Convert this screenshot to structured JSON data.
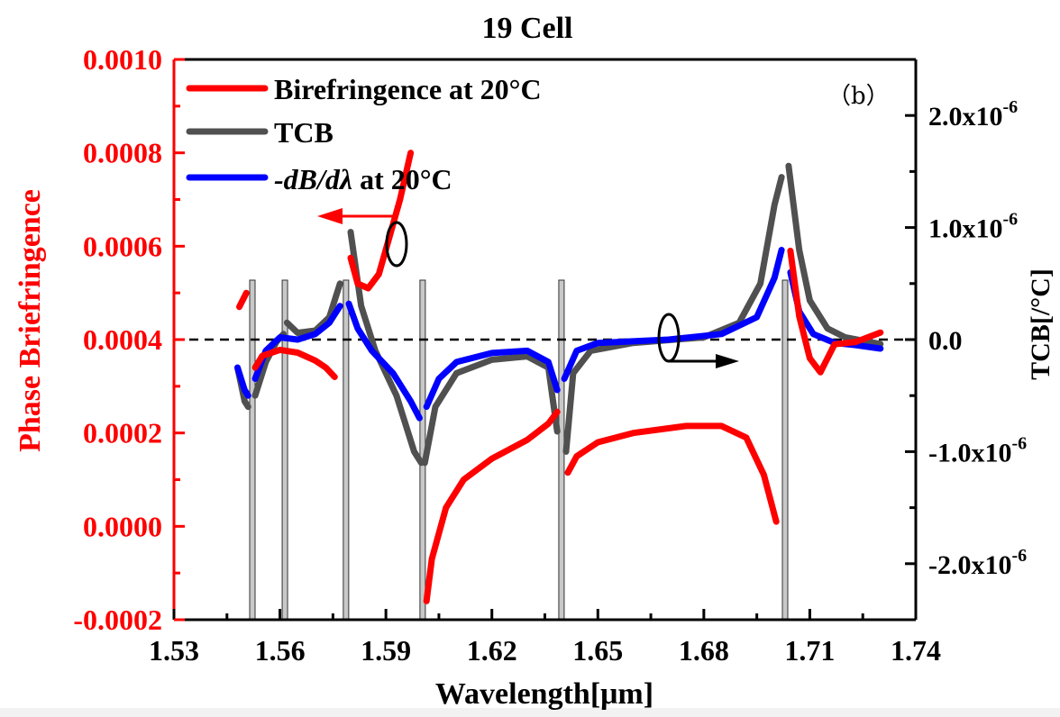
{
  "chart_data": {
    "type": "line",
    "title": "19 Cell",
    "panel_label": "（b）",
    "xlabel": "Wavelength[μm]",
    "ylabel_left": "Phase Briefringence",
    "ylabel_right": "TCB[/°C]",
    "xlim": [
      1.53,
      1.74
    ],
    "ylim_left": [
      -0.0002,
      0.001
    ],
    "ylim_right": [
      -2.5e-06,
      2.5e-06
    ],
    "x_ticks": [
      "1.53",
      "1.56",
      "1.59",
      "1.62",
      "1.65",
      "1.68",
      "1.71",
      "1.74"
    ],
    "x_tick_values": [
      1.53,
      1.56,
      1.59,
      1.62,
      1.65,
      1.68,
      1.71,
      1.74
    ],
    "y_left_ticks": [
      "0.0010",
      "0.0008",
      "0.0006",
      "0.0004",
      "0.0002",
      "0.0000",
      "-0.0002"
    ],
    "y_left_tick_values": [
      0.001,
      0.0008,
      0.0006,
      0.0004,
      0.0002,
      0.0,
      -0.0002
    ],
    "y_right_ticks": [
      {
        "mantissa": "2.0x10",
        "exp": "-6",
        "value": 2e-06
      },
      {
        "mantissa": "1.0x10",
        "exp": "-6",
        "value": 1e-06
      },
      {
        "mantissa": "0.0",
        "exp": "",
        "value": 0
      },
      {
        "mantissa": "-1.0x10",
        "exp": "-6",
        "value": -1e-06
      },
      {
        "mantissa": "-2.0x10",
        "exp": "-6",
        "value": -2e-06
      }
    ],
    "reference_line_left_value": 0.0004,
    "legend": {
      "position": "top-left",
      "entries": [
        {
          "label": "Birefringence at 20°C",
          "color": "#ff0000"
        },
        {
          "label": "TCB",
          "color": "#505050"
        },
        {
          "label_italic": "-dB/dλ",
          "label_rest": " at 20°C",
          "color": "#0000ff"
        }
      ]
    },
    "resonance_markers_um": [
      1.5522,
      1.5614,
      1.5787,
      1.6004,
      1.6397,
      1.703
    ],
    "series": [
      {
        "name": "Birefringence at 20°C",
        "axis": "left",
        "color": "#ff0000",
        "segments": [
          [
            [
              1.5485,
              0.00047
            ],
            [
              1.5505,
              0.0005
            ]
          ],
          [
            [
              1.553,
              0.00034
            ],
            [
              1.555,
              0.000365
            ],
            [
              1.56,
              0.000378
            ],
            [
              1.565,
              0.000372
            ],
            [
              1.57,
              0.000355
            ],
            [
              1.573,
              0.00034
            ],
            [
              1.5755,
              0.00032
            ]
          ],
          [
            [
              1.58,
              0.000575
            ],
            [
              1.582,
              0.00052
            ],
            [
              1.585,
              0.00051
            ],
            [
              1.588,
              0.00054
            ],
            [
              1.591,
              0.00062
            ],
            [
              1.594,
              0.0007
            ],
            [
              1.597,
              0.0008
            ]
          ],
          [
            [
              1.6015,
              -0.00016
            ],
            [
              1.603,
              -7e-05
            ],
            [
              1.607,
              4e-05
            ],
            [
              1.612,
              0.0001
            ],
            [
              1.62,
              0.000145
            ],
            [
              1.63,
              0.000185
            ],
            [
              1.636,
              0.00022
            ],
            [
              1.6385,
              0.000245
            ]
          ],
          [
            [
              1.6415,
              0.000115
            ],
            [
              1.644,
              0.00015
            ],
            [
              1.65,
              0.00018
            ],
            [
              1.66,
              0.0002
            ],
            [
              1.675,
              0.000215
            ],
            [
              1.685,
              0.000215
            ],
            [
              1.692,
              0.00019
            ],
            [
              1.697,
              0.00011
            ],
            [
              1.7005,
              1e-05
            ]
          ],
          [
            [
              1.7045,
              0.00059
            ],
            [
              1.707,
              0.00045
            ],
            [
              1.71,
              0.00036
            ],
            [
              1.713,
              0.00033
            ],
            [
              1.717,
              0.00039
            ],
            [
              1.723,
              0.000395
            ],
            [
              1.73,
              0.000415
            ]
          ]
        ]
      },
      {
        "name": "TCB",
        "axis": "right",
        "color": "#505050",
        "segments": [
          [
            [
              1.548,
              -2.5e-07
            ],
            [
              1.55,
              -5.5e-07
            ],
            [
              1.551,
              -6e-07
            ]
          ],
          [
            [
              1.553,
              -5e-07
            ],
            [
              1.556,
              -2e-07
            ],
            [
              1.559,
              -2e-08
            ],
            [
              1.561,
              5e-08
            ]
          ],
          [
            [
              1.562,
              1.5e-07
            ],
            [
              1.565,
              6e-08
            ],
            [
              1.57,
              8e-08
            ],
            [
              1.574,
              2e-07
            ],
            [
              1.577,
              5e-07
            ]
          ],
          [
            [
              1.58,
              9.6e-07
            ],
            [
              1.583,
              3e-07
            ],
            [
              1.587,
              -1e-07
            ],
            [
              1.593,
              -5e-07
            ],
            [
              1.598,
              -1e-06
            ],
            [
              1.6,
              -1.1e-06
            ]
          ],
          [
            [
              1.601,
              -1.1e-06
            ],
            [
              1.604,
              -6e-07
            ],
            [
              1.61,
              -3e-07
            ],
            [
              1.62,
              -1.8e-07
            ],
            [
              1.63,
              -1.5e-07
            ],
            [
              1.636,
              -2.5e-07
            ],
            [
              1.6385,
              -8.2e-07
            ]
          ],
          [
            [
              1.641,
              -1e-06
            ],
            [
              1.643,
              -3e-07
            ],
            [
              1.648,
              -1e-07
            ],
            [
              1.66,
              -3e-08
            ],
            [
              1.68,
              2e-08
            ],
            [
              1.69,
              1.5e-07
            ],
            [
              1.696,
              5e-07
            ],
            [
              1.7,
              1.2e-06
            ],
            [
              1.702,
              1.45e-06
            ]
          ],
          [
            [
              1.704,
              1.55e-06
            ],
            [
              1.707,
              8e-07
            ],
            [
              1.71,
              3.5e-07
            ],
            [
              1.715,
              1e-07
            ],
            [
              1.72,
              2e-08
            ],
            [
              1.73,
              -4e-08
            ]
          ]
        ]
      },
      {
        "name": "-dB/dλ at 20°C",
        "axis": "right",
        "color": "#0000ff",
        "segments": [
          [
            [
              1.548,
              -2.5e-07
            ],
            [
              1.55,
              -4.5e-07
            ],
            [
              1.551,
              -5e-07
            ]
          ],
          [
            [
              1.553,
              -3.5e-07
            ],
            [
              1.556,
              -1e-07
            ],
            [
              1.56,
              2e-08
            ],
            [
              1.565,
              0.0
            ],
            [
              1.57,
              5e-08
            ],
            [
              1.574,
              1.5e-07
            ],
            [
              1.577,
              3e-07
            ]
          ],
          [
            [
              1.5795,
              3.2e-07
            ],
            [
              1.582,
              1e-07
            ],
            [
              1.586,
              -1e-07
            ],
            [
              1.592,
              -3e-07
            ],
            [
              1.597,
              -5.5e-07
            ],
            [
              1.5995,
              -7e-07
            ]
          ],
          [
            [
              1.6015,
              -6e-07
            ],
            [
              1.605,
              -3.5e-07
            ],
            [
              1.61,
              -2e-07
            ],
            [
              1.62,
              -1.2e-07
            ],
            [
              1.63,
              -1e-07
            ],
            [
              1.636,
              -2e-07
            ],
            [
              1.6385,
              -4.5e-07
            ]
          ],
          [
            [
              1.6405,
              -3.5e-07
            ],
            [
              1.644,
              -1e-07
            ],
            [
              1.65,
              -3e-08
            ],
            [
              1.67,
              0.0
            ],
            [
              1.685,
              5e-08
            ],
            [
              1.695,
              2e-07
            ],
            [
              1.7,
              5.5e-07
            ],
            [
              1.702,
              8e-07
            ]
          ],
          [
            [
              1.7045,
              6e-07
            ],
            [
              1.707,
              2.5e-07
            ],
            [
              1.711,
              5e-08
            ],
            [
              1.717,
              -3e-08
            ],
            [
              1.723,
              -5e-08
            ],
            [
              1.73,
              -8e-08
            ]
          ]
        ]
      }
    ],
    "annotations": [
      {
        "type": "ellipse-arrow",
        "target_axis": "left",
        "direction": "left",
        "near_x": 1.594
      },
      {
        "type": "ellipse-arrow",
        "target_axis": "right",
        "direction": "right",
        "near_x": 1.671
      }
    ]
  }
}
